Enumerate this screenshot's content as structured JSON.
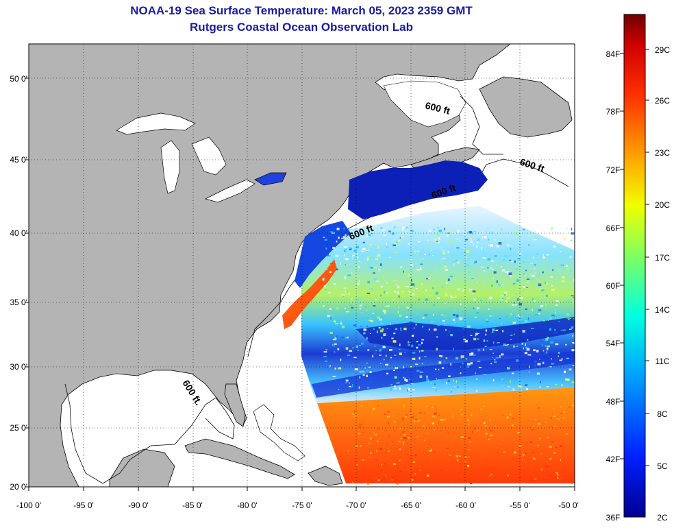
{
  "header": {
    "title": "NOAA-19 Sea Surface Temperature:  March 05, 2023 2359 GMT",
    "subtitle": "Rutgers Coastal Ocean Observation Lab"
  },
  "map": {
    "lat_ticks": [
      "50 0'",
      "45 0'",
      "40 0'",
      "35 0'",
      "30 0'",
      "25 0'",
      "20 0'"
    ],
    "lon_ticks": [
      "-100 0'",
      "-95 0'",
      "-90 0'",
      "-85 0'",
      "-80 0'",
      "-75 0'",
      "-70 0'",
      "-65 0'",
      "-60 0'",
      "-55 0'",
      "-50 0'"
    ],
    "contour_label": "600 ft",
    "contour_labels": [
      {
        "id": "gulf-st-lawrence",
        "text": "600 ft"
      },
      {
        "id": "grand-banks",
        "text": "600 ft"
      },
      {
        "id": "gulf-maine",
        "text": "600 ft"
      },
      {
        "id": "mid-atlantic",
        "text": "600 ft"
      },
      {
        "id": "gulf-mexico",
        "text": "600 ft."
      }
    ],
    "land_color": "#b4b4b4",
    "no_data_color": "#ffffff"
  },
  "colorbar": {
    "fahrenheit_ticks": [
      "84F",
      "78F",
      "72F",
      "66F",
      "60F",
      "54F",
      "48F",
      "42F",
      "36F"
    ],
    "celsius_ticks": [
      "29C",
      "26C",
      "23C",
      "20C",
      "17C",
      "14C",
      "11C",
      "8C",
      "5C",
      "2C"
    ],
    "colors": [
      "#0000a0",
      "#0040ff",
      "#00c0ff",
      "#40ffc0",
      "#c0ff40",
      "#ffe000",
      "#ff8000",
      "#ff2000",
      "#800000"
    ]
  }
}
